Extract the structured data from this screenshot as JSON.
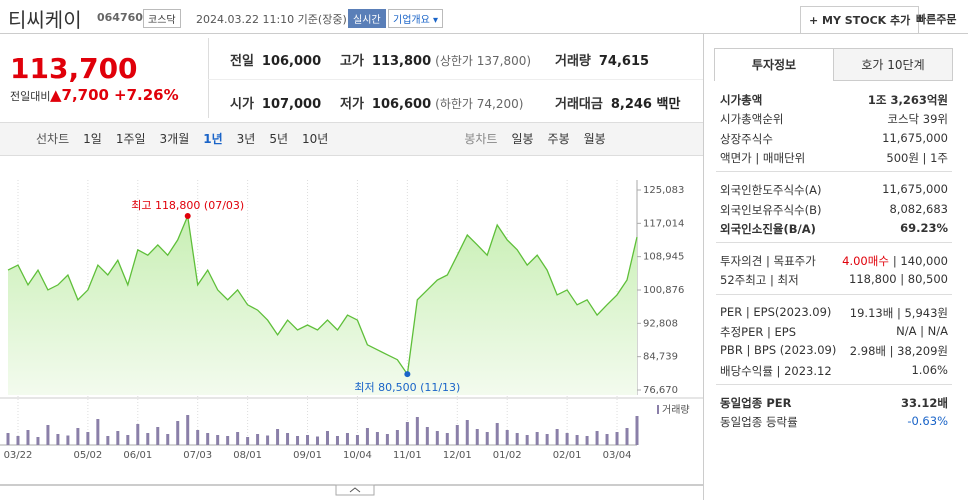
{
  "header": {
    "name": "티씨케이",
    "code": "064760",
    "market": "코스닥",
    "timestamp": "2024.03.22 11:10 기준(장중)",
    "realtime": "실시간",
    "overview": "기업개요",
    "mystock": "+ MY STOCK 추가",
    "quick_order": "빠른주문"
  },
  "quote": {
    "price": "113,700",
    "change_label": "전일대비",
    "change": "▲7,700",
    "change_pct": "+7.26%",
    "cells": [
      {
        "label": "전일",
        "value": "106,000"
      },
      {
        "label": "고가",
        "value": "113,800",
        "note": "(상한가 137,800)"
      },
      {
        "label": "거래량",
        "value": "74,615"
      },
      {
        "label": "시가",
        "value": "107,000"
      },
      {
        "label": "저가",
        "value": "106,600",
        "note": "(하한가 74,200)"
      },
      {
        "label": "거래대금",
        "value": "8,246 백만"
      }
    ]
  },
  "tabs": {
    "line_label": "선차트",
    "line": [
      "1일",
      "1주일",
      "3개월",
      "1년",
      "3년",
      "5년",
      "10년"
    ],
    "candle_label": "봉차트",
    "candle": [
      "일봉",
      "주봉",
      "월봉"
    ]
  },
  "chart_data": {
    "type": "line",
    "categories": [
      null,
      "03/22",
      null,
      null,
      null,
      null,
      null,
      null,
      "05/02",
      null,
      null,
      null,
      null,
      "06/01",
      null,
      null,
      null,
      null,
      null,
      "07/03",
      null,
      null,
      null,
      null,
      "08/01",
      null,
      null,
      null,
      null,
      null,
      "09/01",
      null,
      null,
      null,
      null,
      "10/04",
      null,
      null,
      null,
      null,
      "11/01",
      null,
      null,
      null,
      null,
      "12/01",
      null,
      null,
      null,
      null,
      "01/02",
      null,
      null,
      null,
      null,
      null,
      "02/01",
      null,
      null,
      null,
      null,
      "03/04",
      null,
      null
    ],
    "series": [
      {
        "color": "#5fbf3a",
        "values": [
          105700,
          106900,
          102100,
          105700,
          100900,
          102100,
          104500,
          98500,
          100900,
          106900,
          104500,
          108100,
          102100,
          110600,
          109300,
          111800,
          109300,
          113000,
          118800,
          102100,
          105700,
          100900,
          98500,
          100900,
          97300,
          96000,
          93600,
          90000,
          93600,
          91200,
          92400,
          91200,
          93600,
          91200,
          94800,
          93600,
          87600,
          86400,
          85200,
          84000,
          80500,
          98500,
          100900,
          103300,
          104500,
          109300,
          114200,
          111800,
          109300,
          116600,
          113000,
          110600,
          106900,
          109300,
          105700,
          99700,
          100900,
          97300,
          98500,
          94800,
          97300,
          99700,
          103300,
          113700
        ]
      }
    ],
    "ylim": [
      76670,
      125083
    ],
    "yticks": [
      {
        "value": 76670,
        "label": "76,670"
      },
      {
        "value": 84739,
        "label": "84,739"
      },
      {
        "value": 92808,
        "label": "92,808"
      },
      {
        "value": 100876,
        "label": "100,876"
      },
      {
        "value": 108945,
        "label": "108,945"
      },
      {
        "value": 117014,
        "label": "117,014"
      },
      {
        "value": 125083,
        "label": "125,083"
      }
    ],
    "annotations": [
      {
        "text": "최고 118,800 (07/03)",
        "value": 118800,
        "color": "#e0000a"
      },
      {
        "text": "최저 80,500 (11/13)",
        "value": 80500,
        "color": "#1a64c8"
      }
    ],
    "volume": {
      "name": "거래량",
      "color": "#8a7fa8",
      "vlim": [
        0,
        400000
      ],
      "values": [
        120000,
        90000,
        150000,
        80000,
        200000,
        110000,
        95000,
        170000,
        130000,
        260000,
        90000,
        140000,
        100000,
        210000,
        120000,
        180000,
        110000,
        240000,
        300000,
        150000,
        120000,
        100000,
        90000,
        130000,
        80000,
        110000,
        95000,
        160000,
        120000,
        90000,
        100000,
        85000,
        140000,
        90000,
        120000,
        100000,
        170000,
        130000,
        110000,
        150000,
        230000,
        280000,
        180000,
        140000,
        120000,
        200000,
        250000,
        160000,
        130000,
        220000,
        150000,
        120000,
        100000,
        130000,
        110000,
        160000,
        120000,
        100000,
        90000,
        140000,
        110000,
        130000,
        170000,
        290000
      ]
    }
  },
  "info": {
    "tabs": [
      "투자정보",
      "호가 10단계"
    ],
    "groups": [
      [
        {
          "label": "시가총액",
          "value": "1조 3,263억원"
        },
        {
          "label": "시가총액순위",
          "value": "코스닥 39위"
        },
        {
          "label": "상장주식수",
          "value": "11,675,000"
        },
        {
          "label": "액면가 | 매매단위",
          "value": "500원 | 1주"
        }
      ],
      [
        {
          "label": "외국인한도주식수(A)",
          "value": "11,675,000"
        },
        {
          "label": "외국인보유주식수(B)",
          "value": "8,082,683"
        },
        {
          "label": "외국인소진율(B/A)",
          "value": "69.23%"
        }
      ],
      [
        {
          "label": "투자의견 | 목표주가",
          "value": "4.00매수",
          "value2": "| 140,000"
        },
        {
          "label": "52주최고 | 최저",
          "value": "118,800 | 80,500"
        }
      ],
      [
        {
          "label": "PER | EPS(2023.09)",
          "value": "19.13배 | 5,943원"
        },
        {
          "label": "추정PER | EPS",
          "value": "N/A | N/A"
        },
        {
          "label": "PBR | BPS (2023.09)",
          "value": "2.98배 | 38,209원"
        },
        {
          "label": "배당수익률 | 2023.12",
          "value": "1.06%"
        }
      ],
      [
        {
          "label": "동일업종 PER",
          "value": "33.12배"
        },
        {
          "label": "동일업종 등락률",
          "value": "-0.63%"
        }
      ]
    ]
  }
}
